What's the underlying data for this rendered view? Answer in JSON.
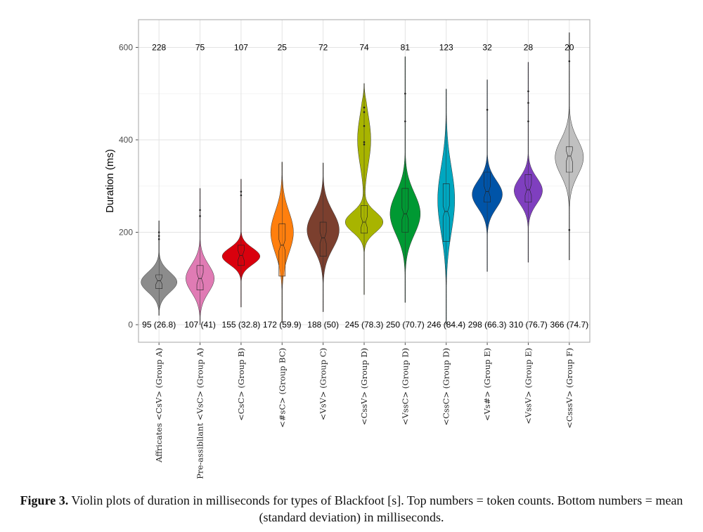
{
  "chart_data": {
    "type": "violin",
    "ylabel": "Duration (ms)",
    "ylim": [
      -38,
      660
    ],
    "yticks": [
      0,
      200,
      400,
      600
    ],
    "grid": true,
    "categories": [
      "Affricates <CsV> (Group A)",
      "Pre-assibilant <VsC> (Group A)",
      "<CsC> (Group B)",
      "<#sC> (Group BC)",
      "<VsV> (Group C)",
      "<CssV> (Group D)",
      "<VssC> (Group D)",
      "<CssC> (Group D)",
      "<Vs#> (Group E)",
      "<VssV> (Group E)",
      "<CsssV> (Group F)"
    ],
    "colors": [
      "#8c8c8c",
      "#e07bb4",
      "#d9000d",
      "#ff7f0e",
      "#7b3f2e",
      "#a8b400",
      "#009933",
      "#00a7c0",
      "#0054a8",
      "#7f3fbf",
      "#c0c0c0"
    ],
    "counts": [
      "228",
      "75",
      "107",
      "25",
      "72",
      "74",
      "81",
      "123",
      "32",
      "28",
      "20"
    ],
    "mean_sd_labels": [
      "95 (26.8)",
      "107 (41)",
      "155 (32.8)",
      "172 (59.9)",
      "188 (50)",
      "245 (78.3)",
      "250 (70.7)",
      "246 (84.4)",
      "298 (66.3)",
      "310 (76.7)",
      "366 (74.7)"
    ],
    "means": [
      95,
      107,
      155,
      172,
      188,
      245,
      250,
      246,
      298,
      310,
      366
    ],
    "sds": [
      26.8,
      41,
      32.8,
      59.9,
      50,
      78.3,
      70.7,
      84.4,
      66.3,
      76.7,
      74.7
    ],
    "distributions": [
      {
        "min": 20,
        "max": 225,
        "q1": 78,
        "median": 95,
        "q3": 108,
        "peaks": [
          [
            92,
            0.95,
            22
          ]
        ],
        "outliers": [
          185,
          192,
          200
        ]
      },
      {
        "min": 0,
        "max": 295,
        "q1": 75,
        "median": 100,
        "q3": 128,
        "peaks": [
          [
            100,
            0.75,
            30
          ]
        ],
        "outliers": [
          235,
          248
        ]
      },
      {
        "min": 38,
        "max": 315,
        "q1": 128,
        "median": 150,
        "q3": 172,
        "peaks": [
          [
            148,
            1.0,
            18
          ]
        ],
        "outliers": [
          280,
          288
        ]
      },
      {
        "min": 5,
        "max": 352,
        "q1": 105,
        "median": 172,
        "q3": 218,
        "peaks": [
          [
            200,
            0.6,
            45
          ]
        ],
        "outliers": []
      },
      {
        "min": 28,
        "max": 350,
        "q1": 148,
        "median": 188,
        "q3": 222,
        "peaks": [
          [
            205,
            0.85,
            40
          ]
        ],
        "outliers": []
      },
      {
        "min": 65,
        "max": 522,
        "q1": 198,
        "median": 222,
        "q3": 258,
        "peaks": [
          [
            222,
            1.0,
            22
          ],
          [
            400,
            0.35,
            55
          ]
        ],
        "outliers": [
          390,
          395,
          430,
          460,
          470
        ]
      },
      {
        "min": 48,
        "max": 580,
        "q1": 200,
        "median": 240,
        "q3": 295,
        "peaks": [
          [
            240,
            0.8,
            45
          ]
        ],
        "outliers": [
          440,
          500
        ]
      },
      {
        "min": 0,
        "max": 510,
        "q1": 180,
        "median": 245,
        "q3": 305,
        "peaks": [
          [
            270,
            0.45,
            70
          ]
        ],
        "outliers": []
      },
      {
        "min": 115,
        "max": 530,
        "q1": 265,
        "median": 288,
        "q3": 330,
        "peaks": [
          [
            282,
            0.8,
            30
          ]
        ],
        "outliers": [
          465
        ]
      },
      {
        "min": 135,
        "max": 568,
        "q1": 265,
        "median": 292,
        "q3": 325,
        "peaks": [
          [
            290,
            0.75,
            28
          ]
        ],
        "outliers": [
          440,
          480,
          505
        ]
      },
      {
        "min": 140,
        "max": 632,
        "q1": 330,
        "median": 365,
        "q3": 385,
        "peaks": [
          [
            362,
            0.75,
            38
          ]
        ],
        "outliers": [
          205,
          570
        ]
      }
    ]
  },
  "caption": {
    "label": "Figure 3.",
    "text": " Violin plots of duration in milliseconds for types of Blackfoot [s]. Top numbers = token counts. Bottom numbers = mean (standard deviation) in milliseconds."
  }
}
